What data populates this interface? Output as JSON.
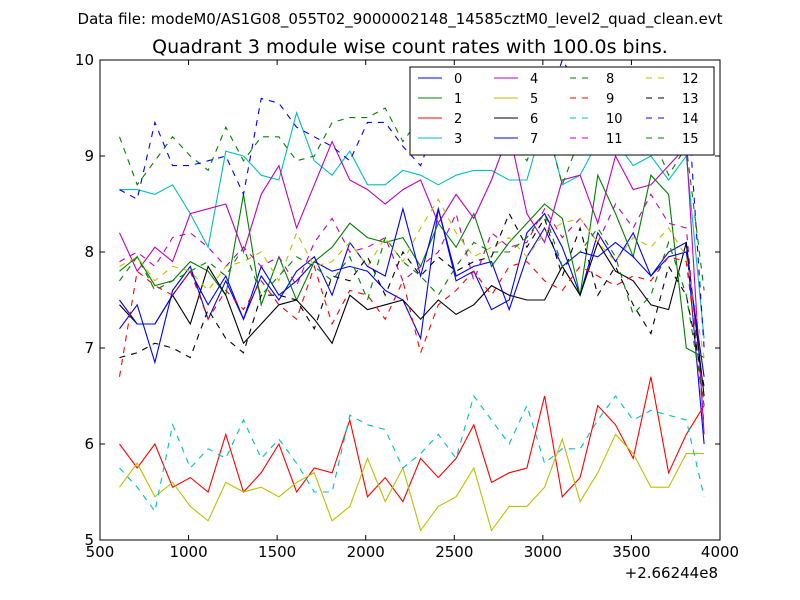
{
  "chart_data": {
    "type": "line",
    "suptitle": "Data file: modeM0/AS1G08_055T02_9000002148_14585cztM0_level2_quad_clean.evt",
    "title": "Quadrant 3 module wise count rates with 100.0s bins.",
    "xlabel": "",
    "ylabel": "",
    "x_offset_label": "+2.66244e8",
    "xlim": [
      500,
      4000
    ],
    "ylim": [
      5,
      10
    ],
    "xticks": [
      "500",
      "1000",
      "1500",
      "2000",
      "2500",
      "3000",
      "3500",
      "4000"
    ],
    "yticks": [
      "5",
      "6",
      "7",
      "8",
      "9",
      "10"
    ],
    "legend_position": "upper right",
    "legend_columns": 4,
    "x": [
      610,
      710,
      810,
      910,
      1010,
      1110,
      1210,
      1310,
      1410,
      1510,
      1610,
      1710,
      1810,
      1910,
      2010,
      2110,
      2210,
      2310,
      2410,
      2510,
      2610,
      2710,
      2810,
      2910,
      3010,
      3110,
      3210,
      3310,
      3410,
      3510,
      3610,
      3710,
      3810,
      3910
    ],
    "series": [
      {
        "name": "0",
        "color": "#0000ff",
        "dash": "solid",
        "values": [
          7.2,
          7.45,
          6.85,
          7.6,
          7.85,
          7.3,
          7.7,
          7.3,
          7.85,
          7.55,
          7.7,
          7.9,
          7.8,
          7.85,
          7.8,
          7.6,
          7.5,
          7.1,
          8.45,
          7.7,
          7.8,
          7.4,
          7.5,
          8.2,
          8.4,
          8.05,
          7.55,
          8.2,
          7.9,
          8.2,
          7.75,
          8.0,
          8.1,
          6.0
        ]
      },
      {
        "name": "1",
        "color": "#008000",
        "dash": "solid",
        "values": [
          7.8,
          7.95,
          7.65,
          7.7,
          7.9,
          7.8,
          7.55,
          8.6,
          7.45,
          7.95,
          7.5,
          7.9,
          8.05,
          8.3,
          8.15,
          8.1,
          8.15,
          7.85,
          8.3,
          8.05,
          8.4,
          7.85,
          8.1,
          8.3,
          8.5,
          8.35,
          7.55,
          8.8,
          8.4,
          7.95,
          8.8,
          8.6,
          7.0,
          6.9
        ]
      },
      {
        "name": "2",
        "color": "#ff0000",
        "dash": "solid",
        "values": [
          6.0,
          5.75,
          6.0,
          5.55,
          5.65,
          5.5,
          6.1,
          5.5,
          5.7,
          6.0,
          5.5,
          5.75,
          5.7,
          6.25,
          5.45,
          5.65,
          5.4,
          5.85,
          5.65,
          5.85,
          6.2,
          5.6,
          5.7,
          5.75,
          6.5,
          5.45,
          5.65,
          6.4,
          6.2,
          5.85,
          6.7,
          5.7,
          6.1,
          6.4
        ]
      },
      {
        "name": "3",
        "color": "#00bfbf",
        "dash": "solid",
        "values": [
          8.65,
          8.65,
          8.6,
          8.7,
          8.4,
          8.05,
          9.05,
          9.0,
          8.8,
          8.75,
          9.45,
          8.95,
          8.8,
          9.05,
          8.7,
          8.7,
          8.85,
          8.8,
          8.7,
          8.8,
          8.85,
          8.85,
          8.75,
          8.75,
          9.4,
          8.7,
          8.8,
          9.15,
          9.15,
          8.9,
          9.0,
          8.75,
          9.0,
          7.1
        ]
      },
      {
        "name": "4",
        "color": "#bf00bf",
        "dash": "solid",
        "values": [
          8.2,
          7.8,
          8.05,
          7.9,
          8.4,
          8.45,
          8.5,
          8.0,
          8.6,
          8.9,
          8.25,
          8.7,
          9.15,
          8.75,
          8.65,
          8.5,
          8.65,
          8.75,
          8.3,
          8.6,
          8.35,
          8.75,
          9.25,
          8.4,
          8.1,
          8.75,
          8.8,
          8.3,
          9.0,
          8.65,
          8.7,
          8.9,
          9.1,
          6.1
        ]
      },
      {
        "name": "5",
        "color": "#bfbf00",
        "dash": "solid",
        "values": [
          5.55,
          5.8,
          5.45,
          5.6,
          5.35,
          5.2,
          5.6,
          5.5,
          5.55,
          5.45,
          5.6,
          5.7,
          5.2,
          5.35,
          5.85,
          5.4,
          5.75,
          5.1,
          5.35,
          5.45,
          5.75,
          5.1,
          5.35,
          5.35,
          5.55,
          6.05,
          5.4,
          5.7,
          6.1,
          5.9,
          5.55,
          5.55,
          5.9,
          5.9
        ]
      },
      {
        "name": "6",
        "color": "#000000",
        "dash": "solid",
        "values": [
          7.45,
          7.25,
          7.25,
          7.55,
          7.25,
          7.85,
          7.55,
          7.05,
          7.25,
          7.45,
          7.5,
          7.3,
          7.05,
          7.55,
          7.4,
          7.45,
          7.5,
          7.3,
          7.5,
          7.35,
          7.45,
          7.65,
          7.55,
          7.5,
          7.5,
          7.85,
          7.55,
          8.1,
          7.8,
          7.7,
          7.45,
          7.4,
          8.1,
          6.5
        ]
      },
      {
        "name": "7",
        "color": "#0000ff",
        "dash": "solid",
        "values": [
          7.5,
          7.25,
          7.25,
          7.55,
          7.8,
          7.45,
          7.75,
          7.3,
          7.75,
          7.5,
          7.8,
          7.95,
          7.55,
          8.1,
          7.85,
          7.75,
          8.45,
          7.75,
          8.45,
          7.75,
          7.85,
          7.9,
          7.4,
          7.95,
          8.25,
          7.85,
          8.0,
          7.95,
          8.1,
          7.95,
          7.75,
          7.95,
          8.0,
          6.7
        ]
      },
      {
        "name": "8",
        "color": "#008000",
        "dash": "dashed",
        "values": [
          9.2,
          8.7,
          8.95,
          9.2,
          9.0,
          8.85,
          9.3,
          8.95,
          9.2,
          9.2,
          8.95,
          9.0,
          9.35,
          9.4,
          9.4,
          9.5,
          9.15,
          9.4,
          9.2,
          9.5,
          9.1,
          9.5,
          9.2,
          8.95,
          9.4,
          8.7,
          9.2,
          9.05,
          9.3,
          9.3,
          9.25,
          8.8,
          9.1,
          7.6
        ]
      },
      {
        "name": "9",
        "color": "#ff0000",
        "dash": "dashed",
        "values": [
          6.7,
          7.8,
          7.65,
          7.55,
          7.8,
          7.3,
          7.6,
          7.4,
          7.7,
          7.45,
          7.3,
          7.85,
          7.25,
          7.6,
          7.55,
          7.3,
          7.7,
          6.95,
          7.45,
          7.6,
          7.8,
          7.55,
          7.85,
          7.9,
          7.7,
          7.6,
          7.85,
          7.75,
          7.65,
          7.75,
          7.7,
          7.95,
          7.9,
          6.4
        ]
      },
      {
        "name": "10",
        "color": "#00bfbf",
        "dash": "dashed",
        "values": [
          5.75,
          5.55,
          5.3,
          6.2,
          5.75,
          5.95,
          5.85,
          6.25,
          5.85,
          6.05,
          5.8,
          5.5,
          5.5,
          6.3,
          6.2,
          6.15,
          5.75,
          5.9,
          6.1,
          5.85,
          6.5,
          6.25,
          6.0,
          6.4,
          5.8,
          5.95,
          5.95,
          6.25,
          6.5,
          6.25,
          6.35,
          6.3,
          6.25,
          5.45
        ]
      },
      {
        "name": "11",
        "color": "#bf00bf",
        "dash": "dashed",
        "values": [
          7.9,
          8.0,
          7.85,
          8.15,
          8.2,
          8.05,
          7.85,
          8.05,
          7.85,
          7.95,
          7.65,
          8.1,
          8.35,
          8.0,
          8.05,
          8.15,
          7.7,
          7.85,
          8.0,
          8.4,
          7.7,
          8.2,
          8.05,
          8.1,
          8.45,
          8.15,
          8.35,
          8.1,
          8.5,
          8.25,
          8.6,
          8.3,
          8.25,
          6.2
        ]
      },
      {
        "name": "12",
        "color": "#bfbf00",
        "dash": "dashed",
        "values": [
          7.85,
          7.95,
          7.7,
          7.85,
          7.8,
          7.6,
          7.85,
          7.9,
          8.0,
          7.7,
          8.2,
          7.85,
          7.9,
          8.1,
          7.85,
          8.15,
          7.9,
          8.25,
          8.55,
          8.2,
          7.95,
          8.05,
          8.15,
          7.95,
          8.2,
          8.3,
          8.35,
          8.1,
          7.9,
          8.15,
          8.05,
          8.25,
          7.95,
          6.9
        ]
      },
      {
        "name": "13",
        "color": "#000000",
        "dash": "dashed",
        "values": [
          6.9,
          6.95,
          7.05,
          7.0,
          6.9,
          7.4,
          7.1,
          6.95,
          7.55,
          7.55,
          7.5,
          7.2,
          7.75,
          7.7,
          7.95,
          7.55,
          8.0,
          7.75,
          7.95,
          7.8,
          7.9,
          7.95,
          8.4,
          8.05,
          8.35,
          7.75,
          8.25,
          7.55,
          7.85,
          7.45,
          7.15,
          7.85,
          7.55,
          6.6
        ]
      },
      {
        "name": "14",
        "color": "#0000ff",
        "dash": "dashed",
        "values": [
          8.65,
          8.55,
          9.35,
          8.9,
          8.9,
          8.95,
          9.0,
          8.6,
          9.6,
          9.55,
          9.3,
          9.2,
          9.1,
          8.95,
          9.35,
          9.35,
          9.1,
          8.9,
          9.4,
          9.1,
          9.5,
          9.65,
          9.55,
          9.6,
          9.45,
          10.0,
          9.7,
          9.75,
          9.4,
          9.35,
          9.65,
          9.5,
          9.8,
          7.0
        ]
      },
      {
        "name": "15",
        "color": "#008000",
        "dash": "dashed",
        "values": [
          7.7,
          7.95,
          7.6,
          7.7,
          7.8,
          7.9,
          7.75,
          8.05,
          7.55,
          7.75,
          7.95,
          7.85,
          7.7,
          7.95,
          7.5,
          8.15,
          7.9,
          7.75,
          7.55,
          7.85,
          8.1,
          8.0,
          8.0,
          8.15,
          8.4,
          7.85,
          8.0,
          8.25,
          7.95,
          7.35,
          7.55,
          8.1,
          7.55,
          6.4
        ]
      }
    ]
  }
}
